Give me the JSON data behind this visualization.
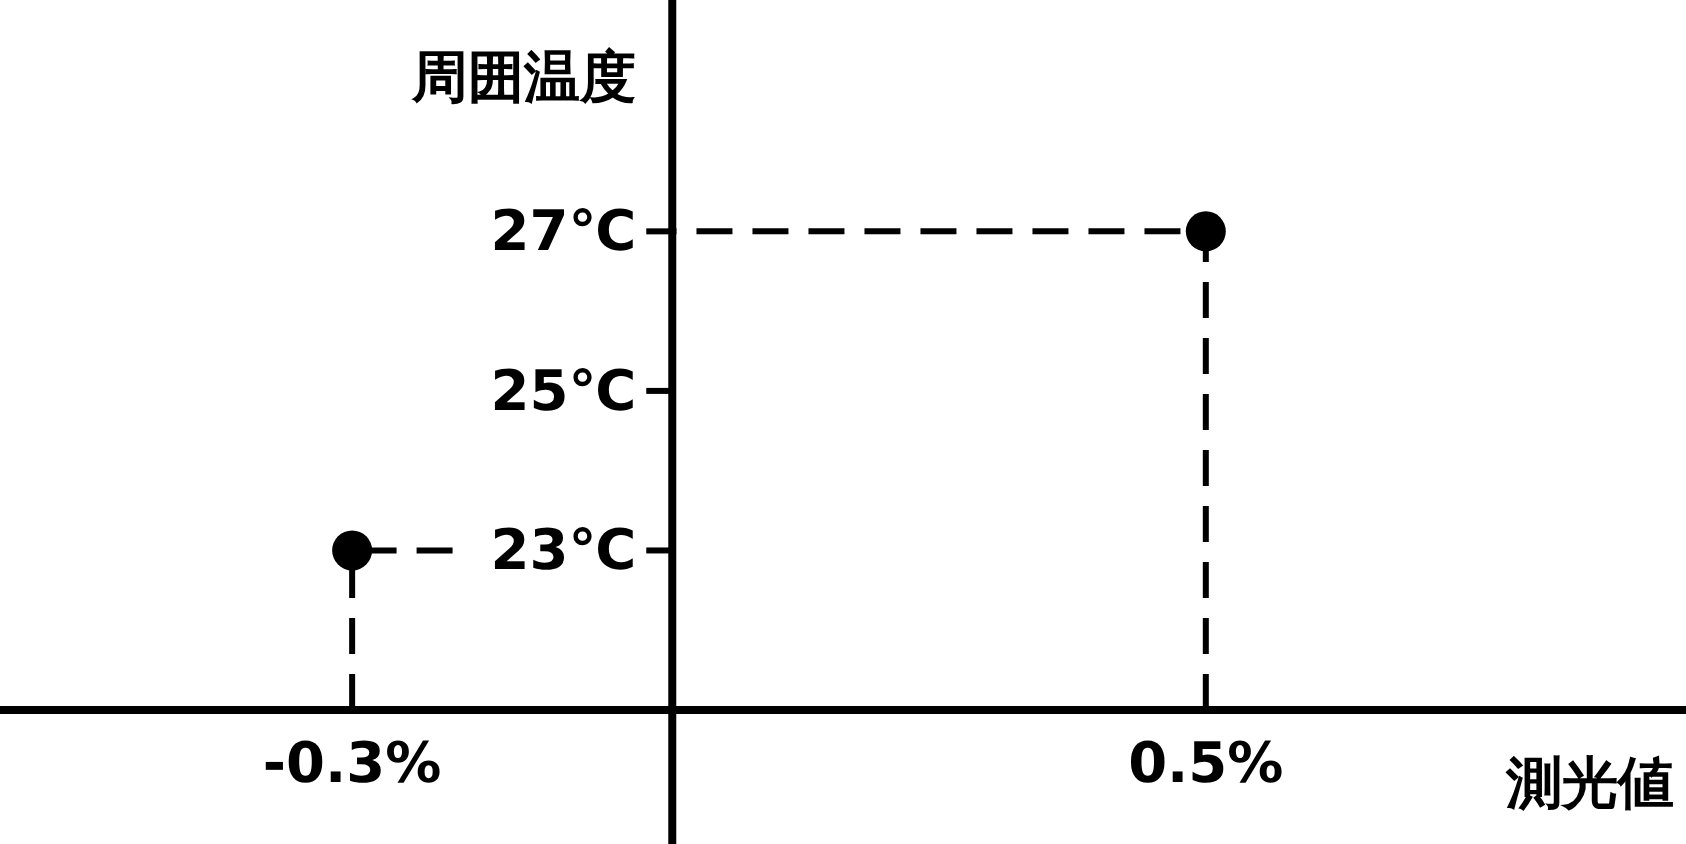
{
  "chart_data": {
    "type": "scatter",
    "xlabel": "測光値",
    "ylabel": "周囲温度",
    "marker": "circle",
    "xlim": [
      -0.63,
      0.95
    ],
    "ylim": [
      21,
      29.9
    ],
    "xticks": [
      {
        "value": -0.3,
        "label": "-0.3%"
      },
      {
        "value": 0.5,
        "label": "0.5%"
      }
    ],
    "yticks": [
      {
        "value": 23,
        "label": "23℃"
      },
      {
        "value": 25,
        "label": "25℃"
      },
      {
        "value": 27,
        "label": "27℃"
      }
    ],
    "series": [
      {
        "type": "line",
        "line_style": "dashed",
        "marker": "none",
        "color": "#000000",
        "x": [
          -0.3,
          -0.3,
          -0.2
        ],
        "values": [
          21,
          23,
          23
        ]
      },
      {
        "type": "line",
        "line_style": "dashed",
        "marker": "none",
        "color": "#000000",
        "x": [
          0.5,
          0.5,
          0
        ],
        "values": [
          21,
          27,
          27
        ]
      },
      {
        "color": "#000000",
        "x": [
          -0.3,
          0.5
        ],
        "values": [
          23,
          27
        ]
      }
    ]
  }
}
